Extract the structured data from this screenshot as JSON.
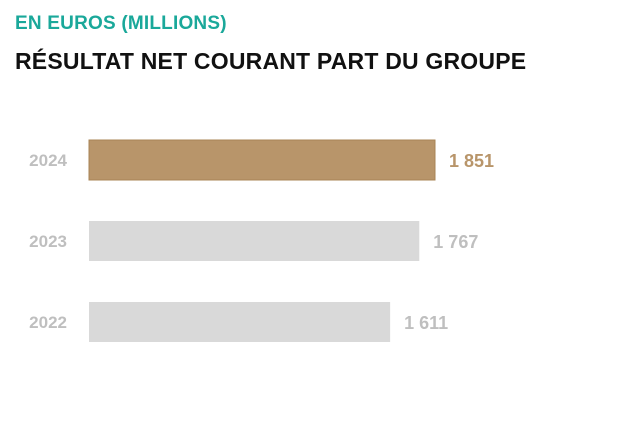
{
  "header": {
    "subtitle": "EN EUROS (MILLIONS)",
    "title": "RÉSULTAT NET COURANT PART DU GROUPE"
  },
  "colors": {
    "accent_teal": "#1aa89a",
    "highlight_bar": "#b8956a",
    "muted_bar": "#d9d9d9",
    "muted_text": "#bfbfbf",
    "title_text": "#111111"
  },
  "chart_data": {
    "type": "bar",
    "orientation": "horizontal",
    "categories": [
      "2024",
      "2023",
      "2022"
    ],
    "values": [
      1851,
      1767,
      1611
    ],
    "value_labels": [
      "1 851",
      "1 767",
      "1 611"
    ],
    "highlight_index": 0,
    "title": "RÉSULTAT NET COURANT PART DU GROUPE",
    "subtitle": "EN EUROS (MILLIONS)",
    "xlabel": "",
    "ylabel": "",
    "grid": false,
    "legend": "none"
  }
}
